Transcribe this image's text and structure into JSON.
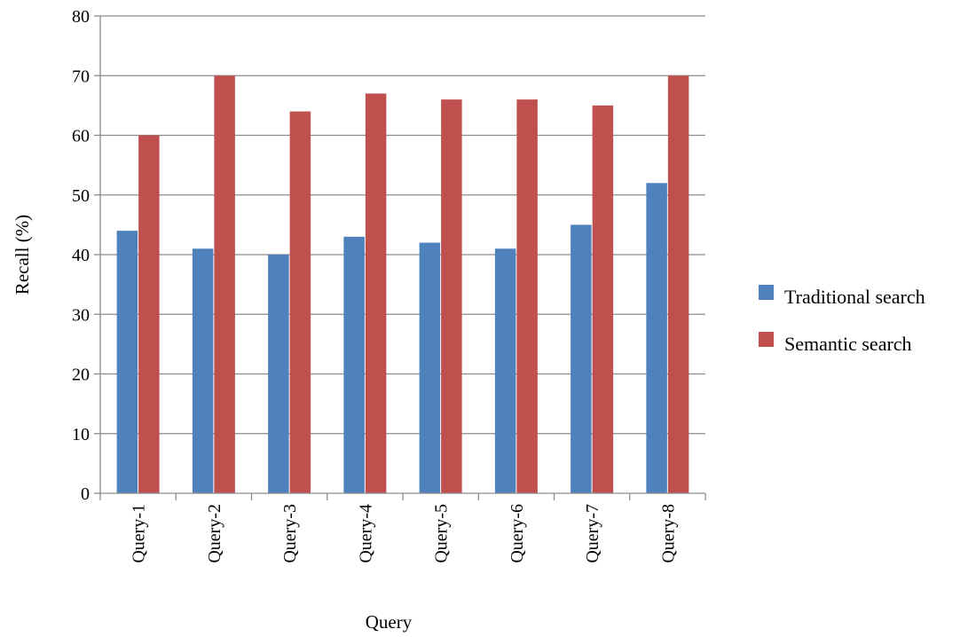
{
  "chart_data": {
    "type": "bar",
    "categories": [
      "Query-1",
      "Query-2",
      "Query-3",
      "Query-4",
      "Query-5",
      "Query-6",
      "Query-7",
      "Query-8"
    ],
    "series": [
      {
        "name": "Traditional search",
        "color": "#4f81bd",
        "values": [
          44,
          41,
          40,
          43,
          42,
          41,
          45,
          52
        ]
      },
      {
        "name": "Semantic search",
        "color": "#c0504d",
        "values": [
          60,
          70,
          64,
          67,
          66,
          66,
          65,
          70
        ]
      }
    ],
    "title": "",
    "xlabel": "Query",
    "ylabel": "Recall (%)",
    "ylim": [
      0,
      80
    ],
    "yticks": [
      0,
      10,
      20,
      30,
      40,
      50,
      60,
      70,
      80
    ],
    "grid": true,
    "legend": "right"
  }
}
